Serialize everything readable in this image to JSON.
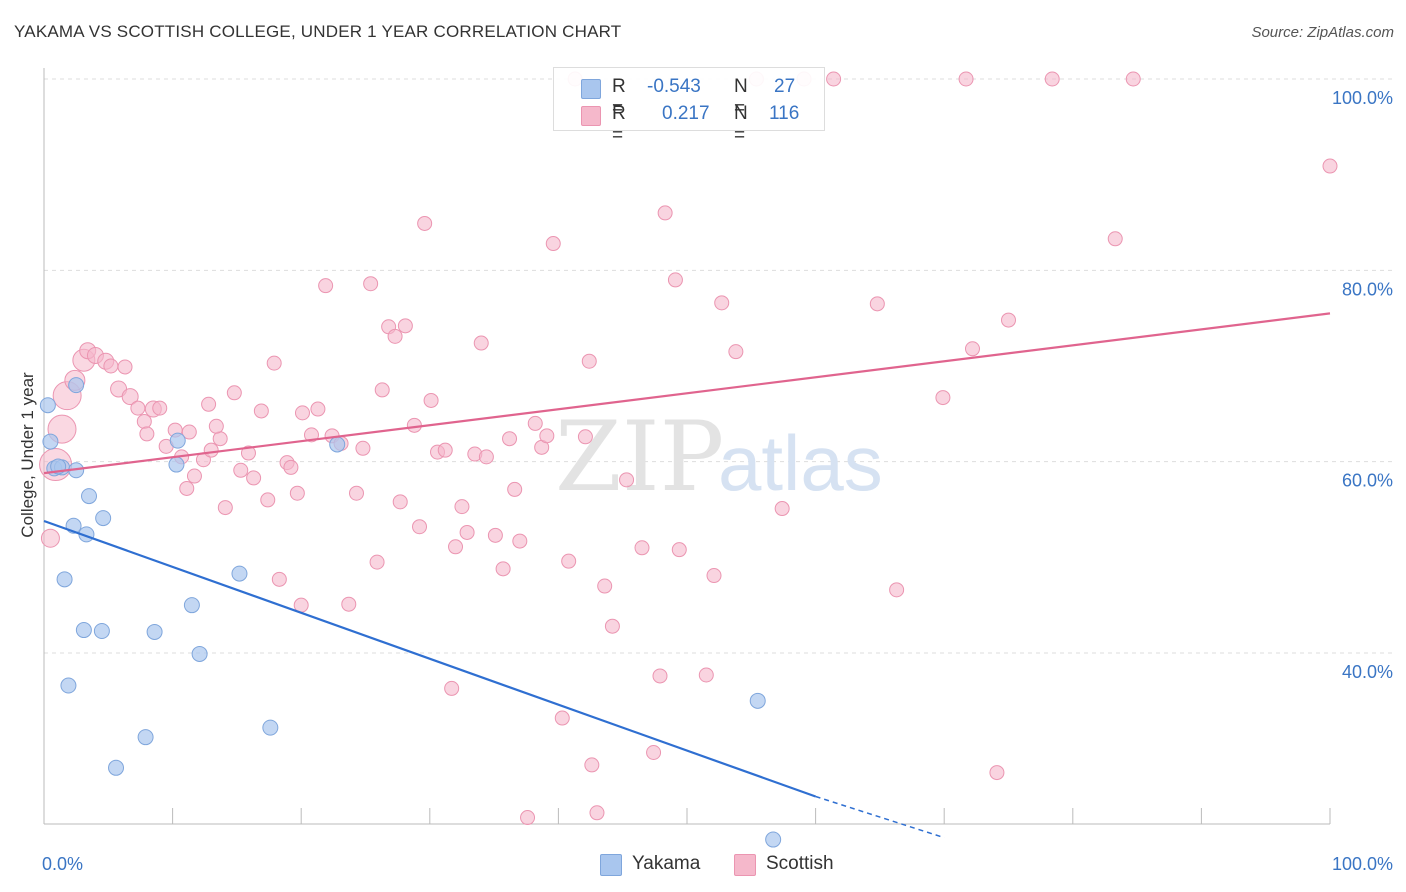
{
  "title": "YAKAMA VS SCOTTISH COLLEGE, UNDER 1 YEAR CORRELATION CHART",
  "source": "Source: ZipAtlas.com",
  "watermark": {
    "part1": "ZIP",
    "part2": "atlas"
  },
  "stats": {
    "rows": [
      {
        "r_label": "R =",
        "r_value": "-0.543",
        "n_label": "N =",
        "n_value": "27",
        "color": "#a9c6ee"
      },
      {
        "r_label": "R =",
        "r_value": "0.217",
        "n_label": "N =",
        "n_value": "116",
        "color": "#f5b8cb"
      }
    ]
  },
  "legend": {
    "items": [
      {
        "label": "Yakama",
        "color": "#a9c6ee"
      },
      {
        "label": "Scottish",
        "color": "#f5b8cb"
      }
    ]
  },
  "colors": {
    "yakama_fill": "#a9c6ee",
    "yakama_stroke": "#7fa6dc",
    "yakama_line": "#2f6fd1",
    "scottish_fill": "#f5b8cb",
    "scottish_stroke": "#eb95b1",
    "scottish_line": "#e0648e",
    "tick_label": "#3a75c4",
    "grid": "#dddddd"
  },
  "chart_data": {
    "type": "scatter",
    "title": "YAKAMA VS SCOTTISH COLLEGE, UNDER 1 YEAR CORRELATION CHART",
    "xlabel": "",
    "ylabel": "College, Under 1 year",
    "xlim": [
      0,
      100
    ],
    "ylim": [
      20,
      102
    ],
    "x_tick_labels": [
      {
        "value": 0,
        "label": "0.0%"
      },
      {
        "value": 100,
        "label": "100.0%"
      }
    ],
    "y_tick_labels": [
      {
        "value": 40,
        "label": "40.0%"
      },
      {
        "value": 60,
        "label": "60.0%"
      },
      {
        "value": 80,
        "label": "80.0%"
      },
      {
        "value": 100,
        "label": "100.0%"
      }
    ],
    "grid": "horizontal dashed",
    "series": [
      {
        "name": "Yakama",
        "r": -0.543,
        "n": 27,
        "trend": {
          "x0": 0,
          "y0": 53.8,
          "x1": 60,
          "y1": 25.0,
          "dash_to_x": 70,
          "dash_to_y": 20.7
        },
        "points": [
          [
            0.3,
            65.9
          ],
          [
            0.5,
            62.1
          ],
          [
            0.8,
            59.3
          ],
          [
            1.4,
            59.4
          ],
          [
            2.5,
            59.1
          ],
          [
            2.5,
            68.0
          ],
          [
            3.5,
            56.4
          ],
          [
            2.3,
            53.3
          ],
          [
            3.3,
            52.4
          ],
          [
            4.6,
            54.1
          ],
          [
            1.6,
            47.7
          ],
          [
            3.1,
            42.4
          ],
          [
            4.5,
            42.3
          ],
          [
            8.6,
            42.2
          ],
          [
            11.5,
            45.0
          ],
          [
            12.1,
            39.9
          ],
          [
            1.9,
            36.6
          ],
          [
            7.9,
            31.2
          ],
          [
            5.6,
            28.0
          ],
          [
            10.3,
            59.7
          ],
          [
            10.4,
            62.2
          ],
          [
            15.2,
            48.3
          ],
          [
            17.6,
            32.2
          ],
          [
            22.8,
            61.8
          ],
          [
            55.5,
            35.0
          ],
          [
            56.7,
            20.5
          ],
          [
            1.1,
            59.5
          ]
        ]
      },
      {
        "name": "Scottish",
        "r": 0.217,
        "n": 116,
        "trend": {
          "x0": 0,
          "y0": 58.8,
          "x1": 100,
          "y1": 75.5
        },
        "points": [
          [
            0.5,
            52.0,
            9
          ],
          [
            0.9,
            59.7,
            16
          ],
          [
            1.4,
            63.4,
            14
          ],
          [
            1.8,
            66.9,
            14
          ],
          [
            2.4,
            68.5,
            10
          ],
          [
            3.1,
            70.6,
            11
          ],
          [
            3.4,
            71.6,
            8
          ],
          [
            4.0,
            71.1,
            8
          ],
          [
            4.8,
            70.5,
            8
          ],
          [
            5.2,
            70.0,
            7
          ],
          [
            5.8,
            67.6,
            8
          ],
          [
            6.7,
            66.8,
            8
          ],
          [
            7.3,
            65.6,
            7
          ],
          [
            7.8,
            64.2,
            7
          ],
          [
            8.5,
            65.5,
            8
          ],
          [
            9.0,
            65.6,
            7
          ],
          [
            9.5,
            61.6,
            7
          ],
          [
            10.2,
            63.3,
            7
          ],
          [
            10.7,
            60.5,
            7
          ],
          [
            11.3,
            63.1,
            7
          ],
          [
            11.1,
            57.2,
            7
          ],
          [
            11.7,
            58.5,
            7
          ],
          [
            12.4,
            60.2,
            7
          ],
          [
            12.8,
            66.0,
            7
          ],
          [
            13.0,
            61.2,
            7
          ],
          [
            13.7,
            62.4,
            7
          ],
          [
            14.1,
            55.2,
            7
          ],
          [
            14.8,
            67.2,
            7
          ],
          [
            15.3,
            59.1,
            7
          ],
          [
            15.9,
            60.9,
            7
          ],
          [
            16.3,
            58.3,
            7
          ],
          [
            16.9,
            65.3,
            7
          ],
          [
            17.4,
            56.0,
            7
          ],
          [
            17.9,
            70.3,
            7
          ],
          [
            18.3,
            47.7,
            7
          ],
          [
            18.9,
            59.9,
            7
          ],
          [
            19.2,
            59.4,
            7
          ],
          [
            19.7,
            56.7,
            7
          ],
          [
            20.1,
            65.1,
            7
          ],
          [
            20.8,
            62.8,
            7
          ],
          [
            21.3,
            65.5,
            7
          ],
          [
            21.9,
            78.4,
            7
          ],
          [
            22.4,
            62.7,
            7
          ],
          [
            23.1,
            61.9,
            7
          ],
          [
            23.7,
            45.1,
            7
          ],
          [
            24.3,
            56.7,
            7
          ],
          [
            24.8,
            61.4,
            7
          ],
          [
            25.4,
            78.6,
            7
          ],
          [
            25.9,
            49.5,
            7
          ],
          [
            26.3,
            67.5,
            7
          ],
          [
            26.8,
            74.1,
            7
          ],
          [
            27.3,
            73.1,
            7
          ],
          [
            27.7,
            55.8,
            7
          ],
          [
            28.1,
            74.2,
            7
          ],
          [
            28.8,
            63.8,
            7
          ],
          [
            29.2,
            53.2,
            7
          ],
          [
            29.6,
            84.9,
            7
          ],
          [
            30.1,
            66.4,
            7
          ],
          [
            30.6,
            61.0,
            7
          ],
          [
            31.2,
            61.2,
            7
          ],
          [
            31.7,
            36.3,
            7
          ],
          [
            32.0,
            51.1,
            7
          ],
          [
            32.5,
            55.3,
            7
          ],
          [
            32.9,
            52.6,
            7
          ],
          [
            33.5,
            60.8,
            7
          ],
          [
            34.0,
            72.4,
            7
          ],
          [
            34.4,
            60.5,
            7
          ],
          [
            35.1,
            52.3,
            7
          ],
          [
            35.7,
            48.8,
            7
          ],
          [
            36.2,
            62.4,
            7
          ],
          [
            36.6,
            57.1,
            7
          ],
          [
            37.0,
            51.7,
            7
          ],
          [
            37.6,
            22.8,
            7
          ],
          [
            38.2,
            64.0,
            7
          ],
          [
            38.7,
            61.5,
            7
          ],
          [
            39.1,
            62.7,
            7
          ],
          [
            39.6,
            82.8,
            7
          ],
          [
            40.3,
            33.2,
            7
          ],
          [
            40.8,
            49.6,
            7
          ],
          [
            41.3,
            100.0,
            7
          ],
          [
            42.1,
            62.6,
            7
          ],
          [
            42.4,
            70.5,
            7
          ],
          [
            42.6,
            28.3,
            7
          ],
          [
            43.0,
            23.3,
            7
          ],
          [
            43.6,
            47.0,
            7
          ],
          [
            44.2,
            42.8,
            7
          ],
          [
            45.3,
            58.1,
            7
          ],
          [
            47.4,
            29.6,
            7
          ],
          [
            47.9,
            37.6,
            7
          ],
          [
            48.3,
            86.0,
            7
          ],
          [
            49.1,
            79.0,
            7
          ],
          [
            49.4,
            50.8,
            7
          ],
          [
            51.5,
            37.7,
            7
          ],
          [
            52.1,
            48.1,
            7
          ],
          [
            52.7,
            76.6,
            7
          ],
          [
            53.8,
            71.5,
            7
          ],
          [
            55.4,
            100.0,
            7
          ],
          [
            57.4,
            55.1,
            7
          ],
          [
            59.1,
            100.0,
            7
          ],
          [
            61.4,
            100.0,
            7
          ],
          [
            64.8,
            76.5,
            7
          ],
          [
            66.3,
            46.6,
            7
          ],
          [
            69.9,
            66.7,
            7
          ],
          [
            71.7,
            100.0,
            7
          ],
          [
            72.2,
            71.8,
            7
          ],
          [
            74.1,
            27.5,
            7
          ],
          [
            75.0,
            74.8,
            7
          ],
          [
            78.4,
            100.0,
            7
          ],
          [
            83.3,
            83.3,
            7
          ],
          [
            84.7,
            100.0,
            7
          ],
          [
            100.0,
            90.9,
            7
          ],
          [
            6.3,
            69.9,
            7
          ],
          [
            8.0,
            62.9,
            7
          ],
          [
            13.4,
            63.7,
            7
          ],
          [
            20.0,
            45.0,
            7
          ],
          [
            46.5,
            51.0,
            7
          ]
        ]
      }
    ]
  }
}
